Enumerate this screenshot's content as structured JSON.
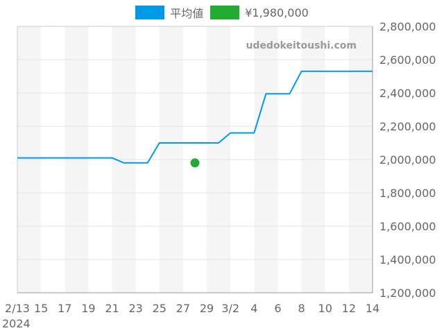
{
  "chart_data": {
    "type": "line",
    "title": "",
    "xlabel": "",
    "ylabel": "",
    "watermark": "udedokeitoushi.com",
    "legend_position": "top",
    "grid": true,
    "ylim": [
      1200000,
      2800000
    ],
    "y_ticks": [
      1200000,
      1400000,
      1600000,
      1800000,
      2000000,
      2200000,
      2400000,
      2600000,
      2800000
    ],
    "y_tick_labels": [
      "1,200,000",
      "1,400,000",
      "1,600,000",
      "1,800,000",
      "2,000,000",
      "2,200,000",
      "2,400,000",
      "2,600,000",
      "2,800,000"
    ],
    "x_start": "2024-02-13",
    "x_end": "2024-03-14",
    "x_tick_labels": [
      "2/13",
      "15",
      "17",
      "19",
      "21",
      "23",
      "25",
      "27",
      "29",
      "3/2",
      "4",
      "6",
      "8",
      "10",
      "12",
      "14"
    ],
    "x_year_label": "2024",
    "series": [
      {
        "name": "平均値",
        "color": "#0099e6",
        "kind": "line",
        "points": [
          [
            "2024-02-13",
            2010000
          ],
          [
            "2024-02-21",
            2010000
          ],
          [
            "2024-02-22",
            1980000
          ],
          [
            "2024-02-24",
            1980000
          ],
          [
            "2024-02-25",
            2100000
          ],
          [
            "2024-03-01",
            2100000
          ],
          [
            "2024-03-02",
            2160000
          ],
          [
            "2024-03-04",
            2160000
          ],
          [
            "2024-03-05",
            2395000
          ],
          [
            "2024-03-07",
            2395000
          ],
          [
            "2024-03-08",
            2530000
          ],
          [
            "2024-03-14",
            2530000
          ]
        ]
      },
      {
        "name": "¥1,980,000",
        "color": "#22aa33",
        "kind": "point",
        "points": [
          [
            "2024-02-28",
            1980000
          ]
        ]
      }
    ]
  }
}
